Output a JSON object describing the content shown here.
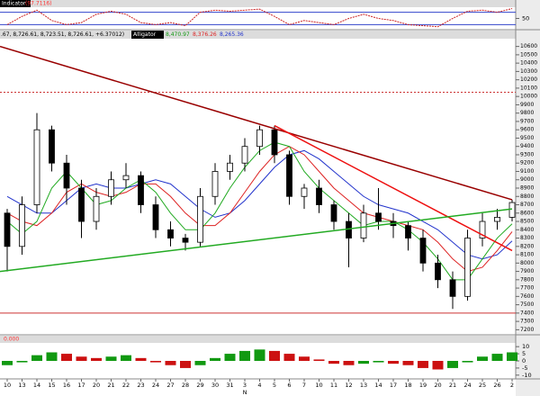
{
  "chart_data": {
    "type": "candlestick",
    "indicator_title": "Indicator",
    "indicator_value": "(97.7116)",
    "price_header": ".67, 8,726.61, 8,723.51, 8,726.61, +6.37012)",
    "alligator_title": "Alligator",
    "alligator_values": [
      "8,470.97",
      "8,376.26",
      "8,265.36"
    ],
    "ao_header": "0.000",
    "categories": [
      "10",
      "13",
      "14",
      "15",
      "16",
      "17",
      "20",
      "21",
      "22",
      "23",
      "24",
      "27",
      "28",
      "29",
      "30",
      "31",
      "3",
      "4",
      "5",
      "6",
      "7",
      "10",
      "11",
      "12",
      "13",
      "14",
      "17",
      "18",
      "19",
      "20",
      "21",
      "24",
      "25",
      "26",
      "2"
    ],
    "month_label": "N",
    "month_index": 16,
    "open": [
      8600,
      8200,
      8700,
      9600,
      9200,
      8900,
      8500,
      8800,
      9000,
      9050,
      8700,
      8400,
      8300,
      8250,
      8800,
      9100,
      9200,
      9400,
      9600,
      9300,
      8800,
      8900,
      8700,
      8500,
      8300,
      8600,
      8500,
      8450,
      8300,
      8000,
      7800,
      7600,
      8300,
      8500,
      8550
    ],
    "high": [
      8650,
      8800,
      9800,
      9650,
      9300,
      9000,
      8900,
      9100,
      9200,
      9100,
      8800,
      8500,
      8350,
      8900,
      9200,
      9300,
      9500,
      9650,
      9650,
      9350,
      8950,
      9000,
      8750,
      8600,
      8700,
      8900,
      8600,
      8500,
      8400,
      8100,
      7900,
      8400,
      8600,
      8650,
      8760
    ],
    "low": [
      7900,
      8100,
      8600,
      9100,
      8700,
      8300,
      8400,
      8700,
      8900,
      8600,
      8300,
      8200,
      8150,
      8200,
      8700,
      9000,
      9100,
      9300,
      9200,
      8700,
      8650,
      8600,
      8400,
      7950,
      8250,
      8400,
      8300,
      8150,
      7900,
      7700,
      7450,
      7550,
      8200,
      8400,
      8500
    ],
    "close": [
      8200,
      8700,
      9600,
      9200,
      8900,
      8500,
      8800,
      9000,
      9050,
      8700,
      8400,
      8300,
      8250,
      8800,
      9100,
      9200,
      9400,
      9600,
      9300,
      8800,
      8900,
      8700,
      8500,
      8300,
      8600,
      8500,
      8450,
      8300,
      8000,
      7800,
      7600,
      8300,
      8500,
      8550,
      8726.61
    ],
    "series": [
      {
        "color": "#2233cc",
        "values": [
          8800,
          8700,
          8600,
          8600,
          8750,
          8900,
          8950,
          8900,
          8900,
          8950,
          9000,
          8950,
          8800,
          8650,
          8550,
          8600,
          8750,
          8950,
          9150,
          9300,
          9350,
          9250,
          9100,
          8950,
          8800,
          8700,
          8650,
          8600,
          8500,
          8400,
          8250,
          8100,
          8050,
          8100,
          8265.36
        ]
      },
      {
        "color": "#dd2222",
        "values": [
          8600,
          8500,
          8450,
          8600,
          8850,
          8950,
          8850,
          8800,
          8850,
          8950,
          8950,
          8800,
          8600,
          8450,
          8450,
          8600,
          8850,
          9100,
          9300,
          9400,
          9300,
          9100,
          8900,
          8750,
          8600,
          8550,
          8500,
          8450,
          8400,
          8250,
          8050,
          7900,
          7950,
          8150,
          8376.26
        ]
      },
      {
        "color": "#22aa22",
        "values": [
          8500,
          8350,
          8500,
          8900,
          9100,
          8900,
          8700,
          8750,
          8900,
          9000,
          8850,
          8600,
          8400,
          8400,
          8600,
          8900,
          9150,
          9350,
          9450,
          9400,
          9100,
          8900,
          8750,
          8600,
          8450,
          8500,
          8500,
          8400,
          8250,
          8050,
          7800,
          7800,
          8050,
          8300,
          8470.97
        ]
      }
    ],
    "trendlines": [
      {
        "color": "#990000",
        "points": [
          [
            0,
            10600
          ],
          [
            34,
            8760
          ]
        ]
      },
      {
        "color": "#ee1111",
        "points": [
          [
            18,
            9650
          ],
          [
            34,
            8150
          ]
        ]
      },
      {
        "color": "#22aa22",
        "points": [
          [
            0,
            7900
          ],
          [
            34,
            8650
          ]
        ]
      }
    ],
    "hlines": [
      {
        "value": 10050,
        "color": "#cc3333",
        "dashed": true
      },
      {
        "value": 7400,
        "color": "#cc3333",
        "dashed": false
      }
    ],
    "ylim": [
      7150,
      10650
    ],
    "yticks": [
      10600,
      10500,
      10400,
      10300,
      10200,
      10100,
      10000,
      9900,
      9800,
      9700,
      9600,
      9500,
      9400,
      9300,
      9200,
      9100,
      9000,
      8900,
      8800,
      8700,
      8600,
      8500,
      8400,
      8300,
      8200,
      8100,
      8000,
      7900,
      7800,
      7700,
      7600,
      7500,
      7400,
      7300,
      7200
    ],
    "stoch": {
      "color": "#cc2222",
      "values": [
        20,
        60,
        90,
        40,
        20,
        30,
        70,
        85,
        70,
        30,
        20,
        30,
        15,
        80,
        90,
        85,
        90,
        95,
        60,
        20,
        40,
        30,
        20,
        50,
        70,
        50,
        40,
        20,
        15,
        10,
        50,
        85,
        90,
        80,
        97.7116
      ],
      "ylim": [
        0,
        100
      ],
      "yticks": [
        50
      ],
      "levels": [
        20,
        80
      ]
    },
    "ao": {
      "values": [
        -3,
        -1,
        4,
        6,
        5,
        3,
        2,
        3,
        4,
        2,
        -1,
        -3,
        -5,
        -3,
        2,
        5,
        7,
        8,
        7,
        5,
        3,
        1,
        -2,
        -3,
        -2,
        -1,
        -2,
        -3,
        -5,
        -6,
        -5,
        -1,
        3,
        5,
        6
      ],
      "up_color": "#119911",
      "down_color": "#cc1111",
      "ylim": [
        -12,
        12
      ],
      "yticks": [
        10,
        5,
        0,
        -5,
        -10
      ]
    }
  }
}
